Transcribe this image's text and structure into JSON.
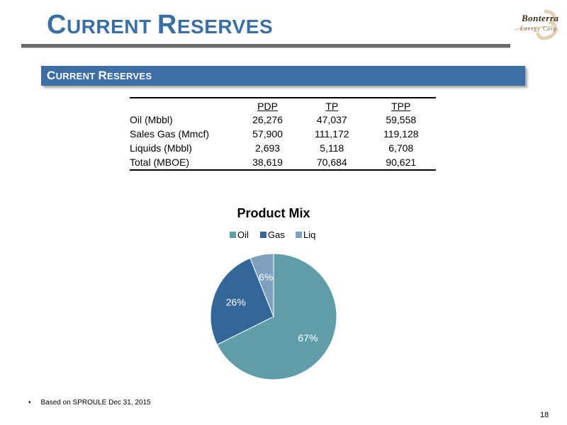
{
  "slide": {
    "title_cap1": "C",
    "title_rest1": "URRENT ",
    "title_cap2": "R",
    "title_rest2": "ESERVES",
    "banner_cap1": "C",
    "banner_rest1": "URRENT ",
    "banner_cap2": "R",
    "banner_rest2": "ESERVES",
    "page_number": "18"
  },
  "logo": {
    "name": "Bonterra",
    "subtitle": "Energy Corp."
  },
  "table": {
    "headers": [
      "",
      "PDP",
      "TP",
      "TPP"
    ],
    "rows": [
      [
        "Oil (Mbbl)",
        "26,276",
        "47,037",
        "59,558"
      ],
      [
        "Sales Gas (Mmcf)",
        "57,900",
        "111,172",
        "119,128"
      ],
      [
        "Liquids (Mbbl)",
        "2,693",
        "5,118",
        "6,708"
      ],
      [
        "Total (MBOE)",
        "38,619",
        "70,684",
        "90,621"
      ]
    ]
  },
  "chart_data": {
    "type": "pie",
    "title": "Product Mix",
    "categories": [
      "Oil",
      "Gas",
      "Liq"
    ],
    "values": [
      67,
      26,
      6
    ],
    "labels": [
      "67%",
      "26%",
      "6%"
    ],
    "colors": [
      "#5f9ea8",
      "#336699",
      "#7f9fbf"
    ],
    "legend": "top"
  },
  "footnote": {
    "bullet": "•",
    "text": "Based on SPROULE Dec 31, 2015"
  }
}
